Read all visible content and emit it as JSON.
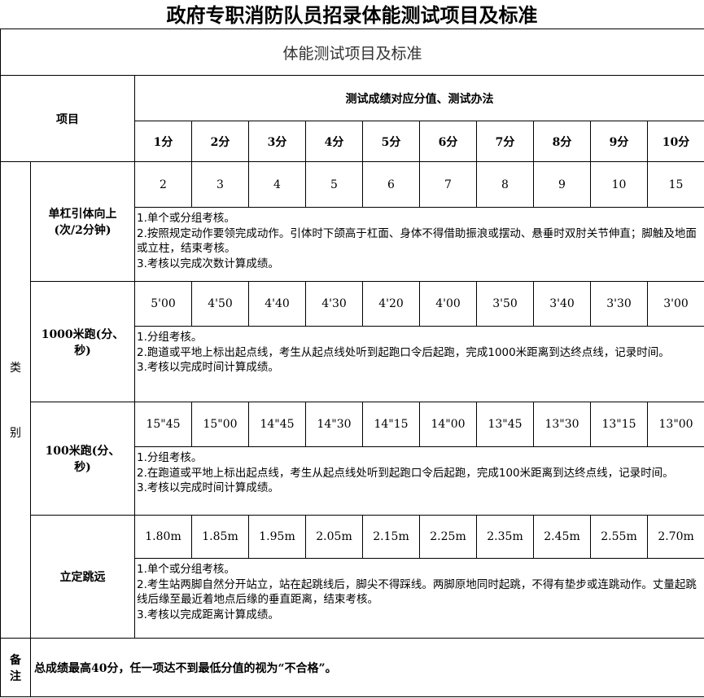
{
  "title": "政府专职消防队员招录体能测试项目及标准",
  "subtitle": "体能测试项目及标准",
  "header": {
    "item": "项目",
    "scores_title": "测试成绩对应分值、测试办法",
    "scores": [
      "1分",
      "2分",
      "3分",
      "4分",
      "5分",
      "6分",
      "7分",
      "8分",
      "9分",
      "10分"
    ]
  },
  "category": {
    "label_top": "类",
    "label_bottom": "别"
  },
  "rows": [
    {
      "name": "单杠引体向上(次/2分钟)",
      "values": [
        "2",
        "3",
        "4",
        "5",
        "6",
        "7",
        "8",
        "9",
        "10",
        "15"
      ],
      "desc": [
        "1.单个或分组考核。",
        "2.按照规定动作要领完成动作。引体时下颌高于杠面、身体不得借助振浪或摆动、悬垂时双肘关节伸直；脚触及地面或立柱，结束考核。",
        "3.考核以完成次数计算成绩。"
      ]
    },
    {
      "name": "1000米跑(分、秒)",
      "values": [
        "5'00",
        "4'50",
        "4'40",
        "4'30",
        "4'20",
        "4'00",
        "3'50",
        "3'40",
        "3'30",
        "3'00"
      ],
      "desc": [
        "1.分组考核。",
        "2.跑道或平地上标出起点线，考生从起点线处听到起跑口令后起跑，完成1000米距离到达终点线，记录时间。",
        "3.考核以完成时间计算成绩。"
      ]
    },
    {
      "name": "100米跑(分、秒)",
      "values": [
        "15\"45",
        "15\"00",
        "14\"45",
        "14\"30",
        "14\"15",
        "14\"00",
        "13\"45",
        "13\"30",
        "13\"15",
        "13\"00"
      ],
      "desc": [
        "1.分组考核。",
        "2.在跑道或平地上标出起点线，考生从起点线处听到起跑口令后起跑，完成100米距离到达终点线，记录时间。",
        "3.考核以完成时间计算成绩。"
      ]
    },
    {
      "name": "立定跳远",
      "values": [
        "1.80m",
        "1.85m",
        "1.95m",
        "2.05m",
        "2.15m",
        "2.25m",
        "2.35m",
        "2.45m",
        "2.55m",
        "2.70m"
      ],
      "desc": [
        "1.单个或分组考核。",
        "2.考生站两脚自然分开站立，站在起跳线后，脚尖不得踩线。两脚原地同时起跳，不得有垫步或连跳动作。丈量起跳线后缘至最近着地点后缘的垂直距离，结束考核。",
        "3.考核以完成距离计算成绩。"
      ]
    }
  ],
  "notes": {
    "label": "备注",
    "text": "总成绩最高40分，任一项达不到最低分值的视为“不合格”。"
  }
}
